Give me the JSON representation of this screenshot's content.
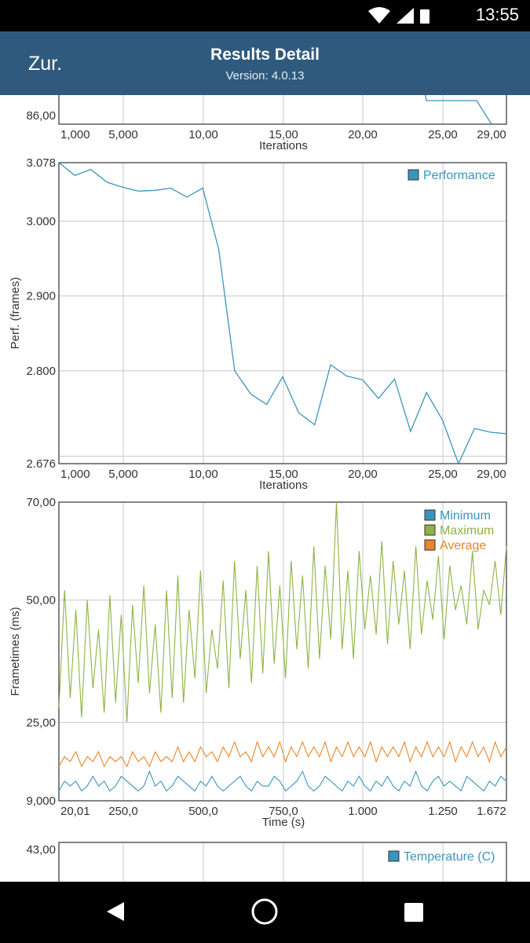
{
  "status_bar": {
    "time": "13:55",
    "icons": [
      "wifi-icon",
      "signal-icon",
      "battery-icon"
    ]
  },
  "app_bar": {
    "back_label": "Zur.",
    "title": "Results Detail",
    "subtitle": "Version: 4.0.13"
  },
  "colors": {
    "app_bar": "#2f5a7e",
    "performance": "#3a95bd",
    "minimum": "#3a95bd",
    "maximum": "#8eb342",
    "average": "#e8862a",
    "temperature": "#3a95bd"
  },
  "chart_data": [
    {
      "type": "line",
      "partial": true,
      "x_tick_labels": [
        "1,000",
        "5,000",
        "10,00",
        "15,00",
        "20,00",
        "25,00",
        "29,00"
      ],
      "y_tick_labels": [
        "86,00"
      ],
      "xlabel": "Iterations",
      "x": [
        24,
        25,
        26,
        27,
        28,
        29
      ],
      "series": [
        {
          "values": [
            88,
            88,
            88,
            88,
            87,
            86
          ]
        }
      ]
    },
    {
      "type": "line",
      "xlabel": "Iterations",
      "ylabel": "Perf. (frames)",
      "x_tick_labels": [
        "1,000",
        "5,000",
        "10,00",
        "15,00",
        "20,00",
        "25,00",
        "29,00"
      ],
      "y_tick_labels": [
        "3.078",
        "3.000",
        "2.900",
        "2.800",
        "2.676"
      ],
      "xlim": [
        1,
        29
      ],
      "ylim": [
        2676,
        3078
      ],
      "x": [
        1,
        2,
        3,
        4,
        5,
        6,
        7,
        8,
        9,
        10,
        11,
        12,
        13,
        14,
        15,
        16,
        17,
        18,
        19,
        20,
        21,
        22,
        23,
        24,
        25,
        26,
        27,
        28,
        29
      ],
      "series": [
        {
          "name": "Performance",
          "values": [
            3078,
            3061,
            3069,
            3052,
            3045,
            3040,
            3041,
            3044,
            3032,
            3044,
            2962,
            2800,
            2769,
            2755,
            2792,
            2744,
            2728,
            2808,
            2793,
            2788,
            2763,
            2789,
            2719,
            2771,
            2734,
            2676,
            2723,
            2718,
            2716
          ]
        }
      ],
      "legend_position": "top-right"
    },
    {
      "type": "line",
      "xlabel": "Time (s)",
      "ylabel": "Frametimes (ms)",
      "x_tick_labels": [
        "20,01",
        "250,0",
        "500,0",
        "750,0",
        "1.000",
        "1.250",
        "1.672"
      ],
      "y_tick_labels": [
        "70,00",
        "50,00",
        "25,00",
        "9,000"
      ],
      "xlim": [
        20.01,
        1672
      ],
      "ylim": [
        9,
        70
      ],
      "series": [
        {
          "name": "Minimum",
          "values": [
            11,
            13,
            12,
            13,
            11,
            12,
            14,
            12,
            13,
            11,
            12,
            14,
            13,
            12,
            11,
            12,
            15,
            12,
            13,
            11,
            12,
            14,
            13,
            12,
            11,
            13,
            12,
            14,
            12,
            11,
            12,
            13,
            14,
            12,
            11,
            13,
            12,
            12,
            14,
            13,
            11,
            12,
            13,
            15,
            12,
            11,
            12,
            14,
            13,
            12,
            11,
            13,
            12,
            14,
            12,
            11,
            13,
            12,
            14,
            12,
            11,
            13,
            12,
            15,
            12,
            11,
            13,
            14,
            12,
            13,
            12,
            11,
            14,
            13,
            12,
            11,
            13,
            12,
            14,
            13
          ]
        },
        {
          "name": "Maximum",
          "values": [
            28,
            52,
            30,
            48,
            26,
            50,
            32,
            44,
            27,
            51,
            29,
            47,
            25,
            49,
            33,
            53,
            31,
            45,
            27,
            52,
            30,
            55,
            29,
            48,
            34,
            56,
            31,
            44,
            36,
            54,
            32,
            58,
            38,
            52,
            33,
            57,
            35,
            60,
            37,
            53,
            34,
            58,
            40,
            55,
            36,
            61,
            38,
            57,
            42,
            70,
            40,
            56,
            38,
            60,
            44,
            55,
            43,
            62,
            41,
            58,
            45,
            56,
            40,
            61,
            43,
            54,
            46,
            59,
            42,
            57,
            48,
            53,
            45,
            60,
            44,
            52,
            49,
            58,
            47,
            61
          ]
        },
        {
          "name": "Average",
          "values": [
            16,
            18,
            17,
            19,
            16,
            18,
            17,
            19,
            16,
            18,
            17,
            18,
            16,
            19,
            17,
            18,
            16,
            19,
            17,
            18,
            17,
            20,
            17,
            19,
            17,
            20,
            18,
            19,
            17,
            20,
            18,
            21,
            18,
            19,
            17,
            21,
            18,
            20,
            18,
            21,
            17,
            20,
            18,
            21,
            18,
            20,
            18,
            21,
            17,
            20,
            18,
            21,
            18,
            20,
            18,
            21,
            17,
            20,
            18,
            20,
            18,
            21,
            17,
            20,
            18,
            21,
            18,
            20,
            18,
            21,
            17,
            20,
            18,
            21,
            18,
            20,
            17,
            21,
            18,
            20
          ]
        }
      ],
      "legend_position": "top-right"
    },
    {
      "type": "line",
      "partial": true,
      "y_tick_labels": [
        "43,00"
      ],
      "series": [
        {
          "name": "Temperature (C)",
          "values": []
        }
      ],
      "legend_position": "top-right"
    }
  ]
}
